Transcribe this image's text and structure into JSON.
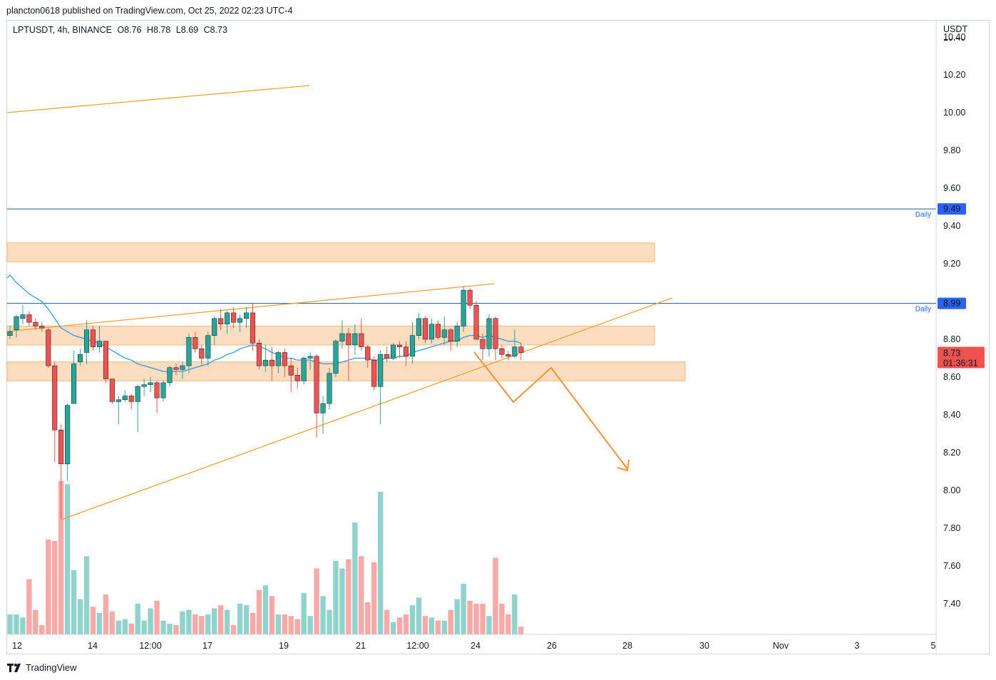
{
  "header": {
    "publish_line": "plancton0618 published on TradingView.com, Oct 25, 2022 02:23 UTC-4"
  },
  "legend": {
    "symbol": "LPTUSDT, 4h, BINANCE",
    "open": "O8.76",
    "high": "H8.78",
    "low": "L8.69",
    "close": "C8.73"
  },
  "footer": {
    "brand": "TradingView"
  },
  "colors": {
    "up": "#26a69a",
    "down": "#ef5350",
    "up_volume": "#92d2cc",
    "down_volume": "#f7a9a7",
    "ma": "#2196f3",
    "trendline": "#f7a035",
    "zone": "#fbd7b5",
    "level": "#1f5e8c",
    "level_label": "#2962ff"
  },
  "chart_data": {
    "type": "candlestick",
    "currency_label": "USDT",
    "y_ticks": [
      "10.40",
      "10.20",
      "10.00",
      "9.80",
      "9.60",
      "9.40",
      "9.20",
      "9.00",
      "8.80",
      "8.60",
      "8.40",
      "8.20",
      "8.00",
      "7.80",
      "7.60",
      "7.40"
    ],
    "x_ticks": [
      "12",
      "14",
      "12:00",
      "17",
      "19",
      "21",
      "12:00",
      "24",
      "26",
      "28",
      "30",
      "Nov",
      "3",
      "5"
    ],
    "ylim": [
      7.25,
      10.45
    ],
    "candles": [
      {
        "o": 8.82,
        "h": 8.87,
        "l": 8.8,
        "c": 8.84,
        "v": 0.13
      },
      {
        "o": 8.85,
        "h": 8.93,
        "l": 8.81,
        "c": 8.92,
        "v": 0.13
      },
      {
        "o": 8.91,
        "h": 8.98,
        "l": 8.88,
        "c": 8.93,
        "v": 0.11
      },
      {
        "o": 8.93,
        "h": 8.95,
        "l": 8.87,
        "c": 8.89,
        "v": 0.36
      },
      {
        "o": 8.89,
        "h": 8.91,
        "l": 8.85,
        "c": 8.87,
        "v": 0.16
      },
      {
        "o": 8.87,
        "h": 8.89,
        "l": 8.84,
        "c": 8.86,
        "v": 0.06
      },
      {
        "o": 8.85,
        "h": 8.86,
        "l": 8.65,
        "c": 8.66,
        "v": 0.62
      },
      {
        "o": 8.66,
        "h": 8.68,
        "l": 8.15,
        "c": 8.32,
        "v": 0.61
      },
      {
        "o": 8.32,
        "h": 8.35,
        "l": 7.85,
        "c": 8.14,
        "v": 1.0
      },
      {
        "o": 8.14,
        "h": 8.46,
        "l": 8.05,
        "c": 8.45,
        "v": 0.98
      },
      {
        "o": 8.46,
        "h": 8.74,
        "l": 8.46,
        "c": 8.67,
        "v": 0.42
      },
      {
        "o": 8.68,
        "h": 8.75,
        "l": 8.66,
        "c": 8.72,
        "v": 0.23
      },
      {
        "o": 8.73,
        "h": 8.9,
        "l": 8.67,
        "c": 8.85,
        "v": 0.51
      },
      {
        "o": 8.85,
        "h": 8.87,
        "l": 8.74,
        "c": 8.76,
        "v": 0.18
      },
      {
        "o": 8.76,
        "h": 8.87,
        "l": 8.73,
        "c": 8.79,
        "v": 0.14
      },
      {
        "o": 8.79,
        "h": 8.79,
        "l": 8.57,
        "c": 8.59,
        "v": 0.26
      },
      {
        "o": 8.59,
        "h": 8.59,
        "l": 8.46,
        "c": 8.47,
        "v": 0.15
      },
      {
        "o": 8.47,
        "h": 8.5,
        "l": 8.35,
        "c": 8.48,
        "v": 0.09
      },
      {
        "o": 8.48,
        "h": 8.53,
        "l": 8.47,
        "c": 8.5,
        "v": 0.1
      },
      {
        "o": 8.5,
        "h": 8.51,
        "l": 8.43,
        "c": 8.47,
        "v": 0.07
      },
      {
        "o": 8.47,
        "h": 8.56,
        "l": 8.31,
        "c": 8.55,
        "v": 0.2
      },
      {
        "o": 8.55,
        "h": 8.59,
        "l": 8.5,
        "c": 8.56,
        "v": 0.09
      },
      {
        "o": 8.56,
        "h": 8.6,
        "l": 8.52,
        "c": 8.57,
        "v": 0.17
      },
      {
        "o": 8.57,
        "h": 8.58,
        "l": 8.41,
        "c": 8.49,
        "v": 0.22
      },
      {
        "o": 8.49,
        "h": 8.58,
        "l": 8.47,
        "c": 8.57,
        "v": 0.09
      },
      {
        "o": 8.57,
        "h": 8.66,
        "l": 8.55,
        "c": 8.65,
        "v": 0.07
      },
      {
        "o": 8.65,
        "h": 8.67,
        "l": 8.61,
        "c": 8.64,
        "v": 0.06
      },
      {
        "o": 8.64,
        "h": 8.68,
        "l": 8.59,
        "c": 8.66,
        "v": 0.15
      },
      {
        "o": 8.66,
        "h": 8.83,
        "l": 8.62,
        "c": 8.81,
        "v": 0.16
      },
      {
        "o": 8.81,
        "h": 8.84,
        "l": 8.73,
        "c": 8.75,
        "v": 0.13
      },
      {
        "o": 8.75,
        "h": 8.77,
        "l": 8.66,
        "c": 8.7,
        "v": 0.12
      },
      {
        "o": 8.7,
        "h": 8.84,
        "l": 8.66,
        "c": 8.82,
        "v": 0.13
      },
      {
        "o": 8.82,
        "h": 8.92,
        "l": 8.77,
        "c": 8.91,
        "v": 0.17
      },
      {
        "o": 8.91,
        "h": 8.96,
        "l": 8.85,
        "c": 8.88,
        "v": 0.19
      },
      {
        "o": 8.88,
        "h": 8.95,
        "l": 8.83,
        "c": 8.94,
        "v": 0.16
      },
      {
        "o": 8.94,
        "h": 8.97,
        "l": 8.86,
        "c": 8.89,
        "v": 0.06
      },
      {
        "o": 8.89,
        "h": 8.93,
        "l": 8.84,
        "c": 8.91,
        "v": 0.2
      },
      {
        "o": 8.91,
        "h": 8.97,
        "l": 8.86,
        "c": 8.94,
        "v": 0.19
      },
      {
        "o": 8.94,
        "h": 8.99,
        "l": 8.74,
        "c": 8.78,
        "v": 0.14
      },
      {
        "o": 8.78,
        "h": 8.8,
        "l": 8.64,
        "c": 8.66,
        "v": 0.29
      },
      {
        "o": 8.66,
        "h": 8.77,
        "l": 8.63,
        "c": 8.69,
        "v": 0.32
      },
      {
        "o": 8.69,
        "h": 8.76,
        "l": 8.58,
        "c": 8.66,
        "v": 0.25
      },
      {
        "o": 8.66,
        "h": 8.74,
        "l": 8.62,
        "c": 8.73,
        "v": 0.13
      },
      {
        "o": 8.73,
        "h": 8.75,
        "l": 8.6,
        "c": 8.66,
        "v": 0.13
      },
      {
        "o": 8.66,
        "h": 8.7,
        "l": 8.52,
        "c": 8.61,
        "v": 0.12
      },
      {
        "o": 8.61,
        "h": 8.65,
        "l": 8.54,
        "c": 8.58,
        "v": 0.1
      },
      {
        "o": 8.58,
        "h": 8.71,
        "l": 8.56,
        "c": 8.7,
        "v": 0.27
      },
      {
        "o": 8.7,
        "h": 8.73,
        "l": 8.64,
        "c": 8.71,
        "v": 0.12
      },
      {
        "o": 8.71,
        "h": 8.72,
        "l": 8.28,
        "c": 8.41,
        "v": 0.43
      },
      {
        "o": 8.41,
        "h": 8.5,
        "l": 8.3,
        "c": 8.46,
        "v": 0.25
      },
      {
        "o": 8.46,
        "h": 8.65,
        "l": 8.43,
        "c": 8.62,
        "v": 0.16
      },
      {
        "o": 8.62,
        "h": 8.8,
        "l": 8.6,
        "c": 8.79,
        "v": 0.48
      },
      {
        "o": 8.79,
        "h": 8.9,
        "l": 8.75,
        "c": 8.83,
        "v": 0.43
      },
      {
        "o": 8.83,
        "h": 8.86,
        "l": 8.58,
        "c": 8.77,
        "v": 0.49
      },
      {
        "o": 8.77,
        "h": 8.88,
        "l": 8.72,
        "c": 8.83,
        "v": 0.73
      },
      {
        "o": 8.83,
        "h": 8.91,
        "l": 8.74,
        "c": 8.76,
        "v": 0.51
      },
      {
        "o": 8.76,
        "h": 8.77,
        "l": 8.65,
        "c": 8.69,
        "v": 0.21
      },
      {
        "o": 8.69,
        "h": 8.71,
        "l": 8.53,
        "c": 8.55,
        "v": 0.47
      },
      {
        "o": 8.55,
        "h": 8.74,
        "l": 8.35,
        "c": 8.72,
        "v": 0.93
      },
      {
        "o": 8.72,
        "h": 8.76,
        "l": 8.68,
        "c": 8.7,
        "v": 0.16
      },
      {
        "o": 8.7,
        "h": 8.78,
        "l": 8.69,
        "c": 8.77,
        "v": 0.08
      },
      {
        "o": 8.77,
        "h": 8.79,
        "l": 8.7,
        "c": 8.76,
        "v": 0.11
      },
      {
        "o": 8.76,
        "h": 8.79,
        "l": 8.66,
        "c": 8.71,
        "v": 0.13
      },
      {
        "o": 8.71,
        "h": 8.89,
        "l": 8.67,
        "c": 8.82,
        "v": 0.19
      },
      {
        "o": 8.82,
        "h": 8.94,
        "l": 8.8,
        "c": 8.91,
        "v": 0.24
      },
      {
        "o": 8.91,
        "h": 8.92,
        "l": 8.78,
        "c": 8.8,
        "v": 0.12
      },
      {
        "o": 8.8,
        "h": 8.91,
        "l": 8.78,
        "c": 8.88,
        "v": 0.11
      },
      {
        "o": 8.88,
        "h": 8.9,
        "l": 8.8,
        "c": 8.81,
        "v": 0.09
      },
      {
        "o": 8.81,
        "h": 8.92,
        "l": 8.77,
        "c": 8.85,
        "v": 0.09
      },
      {
        "o": 8.85,
        "h": 8.86,
        "l": 8.74,
        "c": 8.79,
        "v": 0.16
      },
      {
        "o": 8.79,
        "h": 8.89,
        "l": 8.76,
        "c": 8.87,
        "v": 0.23
      },
      {
        "o": 8.87,
        "h": 9.08,
        "l": 8.84,
        "c": 9.06,
        "v": 0.33
      },
      {
        "o": 9.06,
        "h": 9.07,
        "l": 8.96,
        "c": 8.98,
        "v": 0.22
      },
      {
        "o": 8.98,
        "h": 9.0,
        "l": 8.8,
        "c": 8.8,
        "v": 0.2
      },
      {
        "o": 8.8,
        "h": 8.83,
        "l": 8.69,
        "c": 8.75,
        "v": 0.2
      },
      {
        "o": 8.75,
        "h": 8.93,
        "l": 8.71,
        "c": 8.91,
        "v": 0.12
      },
      {
        "o": 8.91,
        "h": 8.92,
        "l": 8.69,
        "c": 8.75,
        "v": 0.5
      },
      {
        "o": 8.75,
        "h": 8.77,
        "l": 8.7,
        "c": 8.72,
        "v": 0.2
      },
      {
        "o": 8.72,
        "h": 8.74,
        "l": 8.69,
        "c": 8.71,
        "v": 0.13
      },
      {
        "o": 8.71,
        "h": 8.85,
        "l": 8.7,
        "c": 8.76,
        "v": 0.26
      },
      {
        "o": 8.76,
        "h": 8.78,
        "l": 8.69,
        "c": 8.73,
        "v": 0.05
      }
    ],
    "ma_values": [
      9.14,
      9.1,
      9.07,
      9.04,
      9.02,
      9.0,
      8.96,
      8.91,
      8.86,
      8.84,
      8.82,
      8.81,
      8.8,
      8.79,
      8.78,
      8.76,
      8.74,
      8.72,
      8.7,
      8.69,
      8.67,
      8.66,
      8.65,
      8.64,
      8.63,
      8.63,
      8.63,
      8.63,
      8.64,
      8.65,
      8.66,
      8.67,
      8.69,
      8.7,
      8.72,
      8.73,
      8.75,
      8.76,
      8.77,
      8.76,
      8.75,
      8.73,
      8.72,
      8.7,
      8.7,
      8.69,
      8.69,
      8.69,
      8.68,
      8.67,
      8.67,
      8.67,
      8.68,
      8.69,
      8.7,
      8.7,
      8.7,
      8.69,
      8.69,
      8.7,
      8.7,
      8.71,
      8.71,
      8.73,
      8.74,
      8.75,
      8.76,
      8.77,
      8.78,
      8.79,
      8.79,
      8.81,
      8.82,
      8.82,
      8.81,
      8.82,
      8.81,
      8.8,
      8.79,
      8.79,
      8.78
    ],
    "levels": [
      {
        "price": 9.49,
        "label": "Daily",
        "value": "9.49"
      },
      {
        "price": 8.99,
        "label": "Daily",
        "value": "8.99"
      }
    ],
    "last_price": {
      "value": "8.73",
      "countdown": "01:36:31"
    },
    "zones": [
      {
        "top": 9.31,
        "bottom": 9.21,
        "end_x": "26-mid"
      },
      {
        "top": 8.87,
        "bottom": 8.77,
        "end_x": "26-mid"
      },
      {
        "top": 8.68,
        "bottom": 8.58,
        "end_x": "27"
      }
    ],
    "overlay_labels": []
  }
}
